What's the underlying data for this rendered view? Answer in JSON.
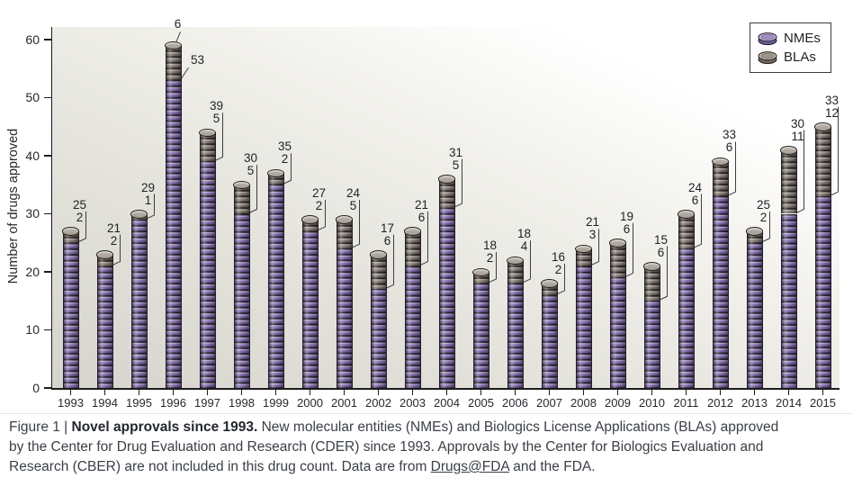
{
  "chart_data": {
    "type": "bar",
    "subtype": "stacked-cylinder-coin-stack",
    "categories": [
      "1993",
      "1994",
      "1995",
      "1996",
      "1997",
      "1998",
      "1999",
      "2000",
      "2001",
      "2002",
      "2003",
      "2004",
      "2005",
      "2006",
      "2007",
      "2008",
      "2009",
      "2010",
      "2011",
      "2012",
      "2013",
      "2014",
      "2015"
    ],
    "series": [
      {
        "name": "NMEs",
        "color": "#8672ae",
        "highlight": "#c3b5dc",
        "shade": "#6d5a97",
        "outline": "#241d2e",
        "values": [
          25,
          21,
          29,
          53,
          39,
          30,
          35,
          27,
          24,
          17,
          21,
          31,
          18,
          18,
          16,
          21,
          19,
          15,
          24,
          33,
          25,
          30,
          33
        ]
      },
      {
        "name": "BLAs",
        "color": "#877f76",
        "highlight": "#bdb6ad",
        "shade": "#6e655d",
        "outline": "#26211d",
        "values": [
          2,
          2,
          1,
          6,
          5,
          5,
          2,
          2,
          5,
          6,
          6,
          5,
          2,
          4,
          2,
          3,
          6,
          6,
          6,
          6,
          2,
          11,
          12
        ]
      }
    ],
    "ylabel": "Number of drugs approved",
    "ylim": [
      0,
      60
    ],
    "yticks": [
      0,
      10,
      20,
      30,
      40,
      50,
      60
    ],
    "grid": false,
    "legend": {
      "position": "top-right",
      "entries": [
        "NMEs",
        "BLAs"
      ]
    },
    "bar_value_labels": true
  },
  "caption": {
    "prefix": "Figure 1 | ",
    "title_bold": "Novel approvals since 1993.",
    "line1_rest": " New molecular entities (NMEs) and Biologics License Applications (BLAs) approved",
    "line2": "by the Center for Drug Evaluation and Research (CDER) since 1993. Approvals by the Center for Biologics Evaluation and",
    "line3_pre": "Research (CBER) are not included in this drug count. Data are from ",
    "link_text": "Drugs@FDA",
    "line3_post": " and the FDA."
  }
}
